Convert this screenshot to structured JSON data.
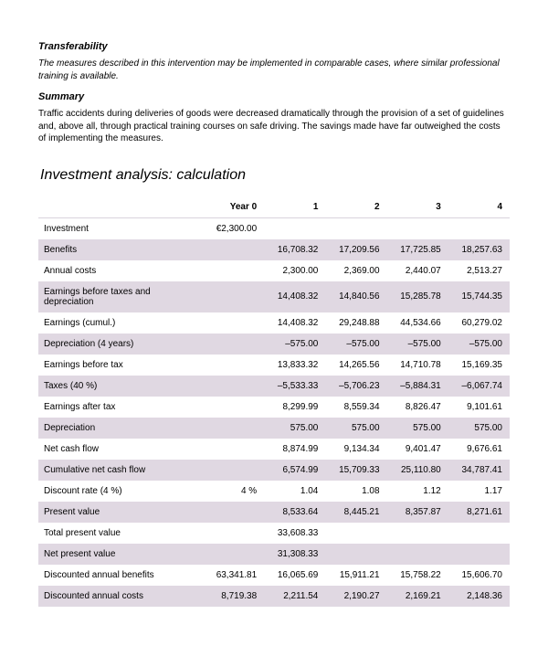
{
  "colors": {
    "shaded_row_bg": "#e0d8e2",
    "text": "#000000",
    "page_bg": "#ffffff"
  },
  "sections": {
    "transferability": {
      "heading": "Transferability",
      "text": "The measures described in this intervention may be implemented in comparable cases, where similar professional training is available."
    },
    "summary": {
      "heading": "Summary",
      "text": "Traffic accidents during deliveries of goods were decreased dramatically through the provision of a set of guidelines and, above all, through practical training courses on safe driving. The savings made have far outweighed the costs of implementing the measures."
    }
  },
  "table": {
    "title": "Investment analysis: calculation",
    "title_fontsize": 16,
    "font_size": 10,
    "columns": [
      "",
      "Year 0",
      "1",
      "2",
      "3",
      "4"
    ],
    "rows": [
      {
        "label": "Investment",
        "shaded": false,
        "cells": [
          "€2,300.00",
          "",
          "",
          "",
          ""
        ]
      },
      {
        "label": "Benefits",
        "shaded": true,
        "cells": [
          "",
          "16,708.32",
          "17,209.56",
          "17,725.85",
          "18,257.63"
        ]
      },
      {
        "label": "Annual costs",
        "shaded": false,
        "cells": [
          "",
          "2,300.00",
          "2,369.00",
          "2,440.07",
          "2,513.27"
        ]
      },
      {
        "label": "Earnings before taxes and depreciation",
        "shaded": true,
        "cells": [
          "",
          "14,408.32",
          "14,840.56",
          "15,285.78",
          "15,744.35"
        ]
      },
      {
        "label": "Earnings (cumul.)",
        "shaded": false,
        "cells": [
          "",
          "14,408.32",
          "29,248.88",
          "44,534.66",
          "60,279.02"
        ]
      },
      {
        "label": "Depreciation (4 years)",
        "shaded": true,
        "cells": [
          "",
          "–575.00",
          "–575.00",
          "–575.00",
          "–575.00"
        ]
      },
      {
        "label": "Earnings before tax",
        "shaded": false,
        "cells": [
          "",
          "13,833.32",
          "14,265.56",
          "14,710.78",
          "15,169.35"
        ]
      },
      {
        "label": "Taxes (40 %)",
        "shaded": true,
        "cells": [
          "",
          "–5,533.33",
          "–5,706.23",
          "–5,884.31",
          "–6,067.74"
        ]
      },
      {
        "label": "Earnings after tax",
        "shaded": false,
        "cells": [
          "",
          "8,299.99",
          "8,559.34",
          "8,826.47",
          "9,101.61"
        ]
      },
      {
        "label": "Depreciation",
        "shaded": true,
        "cells": [
          "",
          "575.00",
          "575.00",
          "575.00",
          "575.00"
        ]
      },
      {
        "label": "Net cash flow",
        "shaded": false,
        "cells": [
          "",
          "8,874.99",
          "9,134.34",
          "9,401.47",
          "9,676.61"
        ]
      },
      {
        "label": "Cumulative net cash flow",
        "shaded": true,
        "cells": [
          "",
          "6,574.99",
          "15,709.33",
          "25,110.80",
          "34,787.41"
        ]
      },
      {
        "label": "Discount rate (4 %)",
        "shaded": false,
        "cells": [
          "4 %",
          "1.04",
          "1.08",
          "1.12",
          "1.17"
        ]
      },
      {
        "label": "Present value",
        "shaded": true,
        "cells": [
          "",
          "8,533.64",
          "8,445.21",
          "8,357.87",
          "8,271.61"
        ]
      },
      {
        "label": "Total present value",
        "shaded": false,
        "cells": [
          "",
          "33,608.33",
          "",
          "",
          ""
        ]
      },
      {
        "label": "Net present value",
        "shaded": true,
        "cells": [
          "",
          "31,308.33",
          "",
          "",
          ""
        ]
      },
      {
        "label": "Discounted annual benefits",
        "shaded": false,
        "cells": [
          "63,341.81",
          "16,065.69",
          "15,911.21",
          "15,758.22",
          "15,606.70"
        ]
      },
      {
        "label": "Discounted annual costs",
        "shaded": true,
        "cells": [
          "8,719.38",
          "2,211.54",
          "2,190.27",
          "2,169.21",
          "2,148.36"
        ]
      }
    ]
  }
}
